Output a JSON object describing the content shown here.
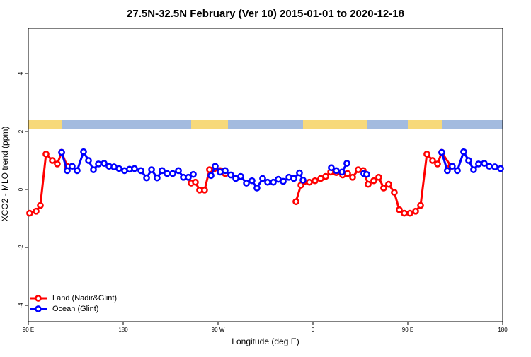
{
  "chart_data": {
    "type": "line",
    "title": "27.5N-32.5N February (Ver 10)   2015-01-01 to 2020-12-18",
    "x_label": "Longitude (deg E)",
    "y_label": "XCO2 - MLO trend (ppm)",
    "xlim": [
      90,
      540
    ],
    "xticks": [
      {
        "value": 90,
        "label": "90 E"
      },
      {
        "value": 180,
        "label": "180"
      },
      {
        "value": 270,
        "label": "90 W"
      },
      {
        "value": 360,
        "label": "0"
      },
      {
        "value": 450,
        "label": "90 E"
      },
      {
        "value": 540,
        "label": "180"
      }
    ],
    "ylim": [
      -4.56,
      5.56
    ],
    "yticks": [
      -4,
      -2,
      0,
      2,
      4
    ],
    "legend": "bottom-left",
    "series": [
      {
        "name": "Land (Nadir&Glint)",
        "color": "#ff0000",
        "x": [
          91.3,
          97.4,
          101.4,
          106.8,
          112.8,
          117.5,
          121.6,
          126.9,
          null,
          244.5,
          248.5,
          252.5,
          257.2,
          261.9,
          266.6,
          272,
          276.7,
          null,
          343.9,
          348.6,
          356.6,
          362,
          367.4,
          372.1,
          376.8,
          382.1,
          388.2,
          392.9,
          397.6,
          402.9,
          407.7,
          412.4,
          417.7,
          422.4,
          427.1,
          431.8,
          437.2,
          441.9,
          446.6,
          452,
          457.4,
          462.1,
          468.1,
          473.5,
          478.2,
          482.2,
          490.9
        ],
        "values": [
          -0.82,
          -0.75,
          -0.55,
          1.22,
          1.0,
          0.88,
          1.28,
          0.8,
          null,
          0.22,
          0.25,
          -0.02,
          -0.02,
          0.68,
          0.72,
          0.65,
          0.55,
          null,
          -0.42,
          0.15,
          0.25,
          0.3,
          0.38,
          0.45,
          0.6,
          0.58,
          0.5,
          0.55,
          0.42,
          0.68,
          0.65,
          0.18,
          0.3,
          0.42,
          0.05,
          0.18,
          -0.1,
          -0.7,
          -0.82,
          -0.82,
          -0.75,
          -0.55,
          1.22,
          1.0,
          0.88,
          1.28,
          0.8
        ]
      },
      {
        "name": "Ocean (Glint)",
        "color": "#0000ff",
        "x": [
          121.6,
          126.9,
          131.6,
          136.3,
          142.4,
          147.1,
          151.8,
          156.5,
          161.9,
          166.6,
          171.3,
          176,
          181.3,
          186,
          190.7,
          196.8,
          202.2,
          206.9,
          212.2,
          216.9,
          221.6,
          227,
          232.4,
          237.1,
          241.8,
          246.5,
          null,
          263.3,
          267.3,
          272,
          276.7,
          282.1,
          286.8,
          291.5,
          296.9,
          302.2,
          306.9,
          312.3,
          317,
          322.4,
          327.1,
          331.8,
          337.2,
          341.9,
          347.2,
          350.6,
          null,
          377.4,
          382.1,
          387.5,
          392.2,
          null,
          408.3,
          411,
          null,
          482.2,
          487.5,
          492.2,
          497,
          503,
          507.7,
          512.4,
          517.1,
          522.5,
          527.2,
          532.6,
          538
        ],
        "values": [
          1.28,
          0.65,
          0.8,
          0.65,
          1.3,
          1.0,
          0.68,
          0.88,
          0.9,
          0.8,
          0.78,
          0.72,
          0.65,
          0.7,
          0.72,
          0.65,
          0.4,
          0.68,
          0.4,
          0.65,
          0.55,
          0.55,
          0.65,
          0.42,
          0.42,
          0.52,
          null,
          0.48,
          0.8,
          0.6,
          0.65,
          0.5,
          0.38,
          0.45,
          0.22,
          0.3,
          0.05,
          0.38,
          0.25,
          0.25,
          0.35,
          0.28,
          0.42,
          0.38,
          0.57,
          0.32,
          null,
          0.75,
          0.65,
          0.6,
          0.9,
          null,
          0.55,
          0.52,
          null,
          1.28,
          0.65,
          0.8,
          0.65,
          1.3,
          1.0,
          0.68,
          0.88,
          0.9,
          0.8,
          0.78,
          0.72
        ]
      }
    ]
  }
}
